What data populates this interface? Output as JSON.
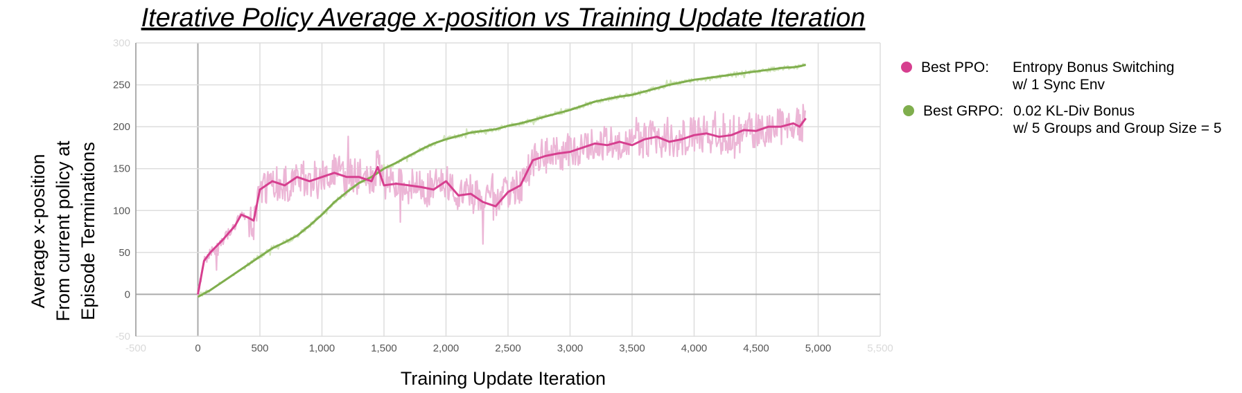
{
  "chart_data": {
    "type": "line",
    "title": "Iterative Policy Average x-position vs Training Update Iteration",
    "xlabel": "Training Update Iteration",
    "ylabel_lines": [
      "Average x-position",
      "From current policy at",
      "Episode Terminations"
    ],
    "xlim": [
      -500,
      5500
    ],
    "ylim": [
      -50,
      300
    ],
    "x_ticks": [
      {
        "value": -500,
        "label": "-500",
        "faint": true
      },
      {
        "value": 0,
        "label": "0"
      },
      {
        "value": 500,
        "label": "500"
      },
      {
        "value": 1000,
        "label": "1,000"
      },
      {
        "value": 1500,
        "label": "1,500"
      },
      {
        "value": 2000,
        "label": "2,000"
      },
      {
        "value": 2500,
        "label": "2,500"
      },
      {
        "value": 3000,
        "label": "3,000"
      },
      {
        "value": 3500,
        "label": "3,500"
      },
      {
        "value": 4000,
        "label": "4,000"
      },
      {
        "value": 4500,
        "label": "4,500"
      },
      {
        "value": 5000,
        "label": "5,000"
      },
      {
        "value": 5500,
        "label": "5,500",
        "faint": true
      }
    ],
    "y_ticks": [
      {
        "value": -50,
        "label": "-50",
        "faint": true
      },
      {
        "value": 0,
        "label": "0"
      },
      {
        "value": 50,
        "label": "50"
      },
      {
        "value": 100,
        "label": "100"
      },
      {
        "value": 150,
        "label": "150"
      },
      {
        "value": 200,
        "label": "200"
      },
      {
        "value": 250,
        "label": "250"
      },
      {
        "value": 300,
        "label": "300",
        "faint": true
      }
    ],
    "grid": true,
    "legend_position": "right",
    "series": [
      {
        "name": "Best PPO:",
        "legend_lines": [
          "Entropy Bonus Switching",
          "w/ 1 Sync Env"
        ],
        "color": "#d63f8f",
        "raw_color": "#ecb6d6",
        "x": [
          0,
          50,
          100,
          200,
          300,
          350,
          400,
          450,
          500,
          600,
          700,
          800,
          900,
          1000,
          1100,
          1200,
          1300,
          1400,
          1450,
          1500,
          1600,
          1700,
          1800,
          1900,
          2000,
          2100,
          2200,
          2300,
          2400,
          2500,
          2600,
          2700,
          2800,
          2900,
          3000,
          3100,
          3200,
          3300,
          3400,
          3500,
          3600,
          3700,
          3800,
          3900,
          4000,
          4100,
          4200,
          4300,
          4400,
          4500,
          4600,
          4700,
          4800,
          4850,
          4900
        ],
        "y": [
          0,
          40,
          50,
          65,
          82,
          95,
          92,
          88,
          125,
          135,
          130,
          140,
          135,
          140,
          145,
          140,
          140,
          135,
          152,
          130,
          132,
          130,
          128,
          125,
          135,
          118,
          120,
          110,
          105,
          122,
          130,
          160,
          165,
          168,
          170,
          175,
          180,
          178,
          182,
          178,
          185,
          188,
          182,
          185,
          190,
          192,
          188,
          190,
          196,
          195,
          200,
          200,
          204,
          200,
          210
        ]
      },
      {
        "name": "Best GRPO:",
        "legend_lines": [
          "0.02 KL-Div Bonus",
          "w/ 5 Groups and Group Size = 5"
        ],
        "color": "#7fae4d",
        "raw_color": "#d3e6bd",
        "x": [
          0,
          100,
          200,
          300,
          400,
          500,
          600,
          700,
          800,
          900,
          1000,
          1100,
          1200,
          1300,
          1400,
          1500,
          1600,
          1700,
          1800,
          1900,
          2000,
          2200,
          2400,
          2500,
          2600,
          2800,
          3000,
          3200,
          3400,
          3500,
          3600,
          3800,
          4000,
          4100,
          4200,
          4300,
          4400,
          4500,
          4600,
          4700,
          4800,
          4850,
          4900
        ],
        "y": [
          -3,
          5,
          15,
          25,
          35,
          45,
          55,
          62,
          70,
          82,
          95,
          110,
          122,
          133,
          140,
          150,
          157,
          165,
          173,
          180,
          185,
          193,
          197,
          201,
          204,
          212,
          220,
          230,
          236,
          238,
          242,
          250,
          256,
          258,
          260,
          262,
          264,
          266,
          268,
          270,
          271,
          272,
          274
        ]
      }
    ]
  }
}
